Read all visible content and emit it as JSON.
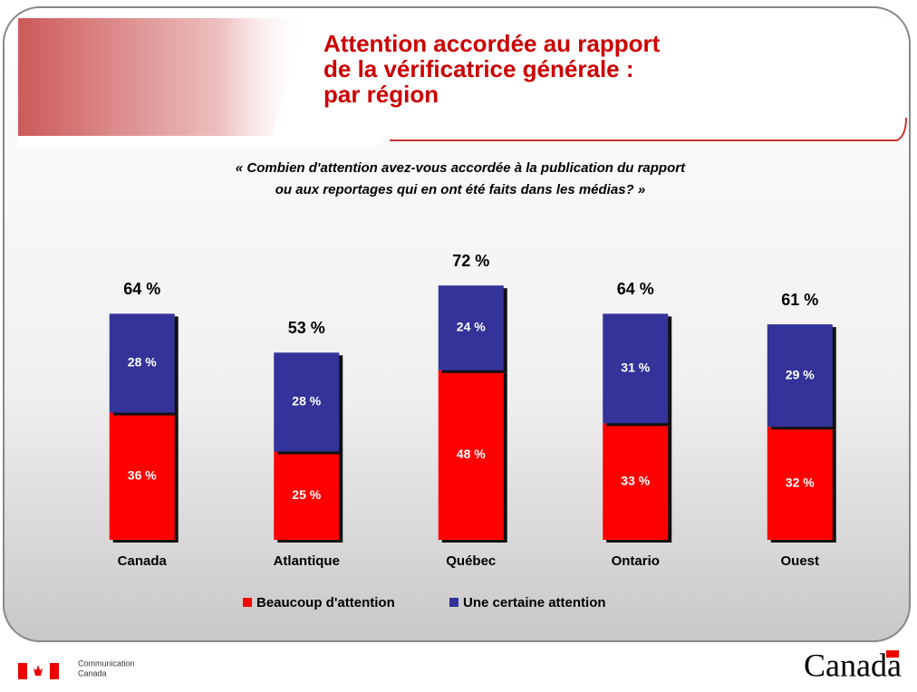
{
  "chart_data": {
    "type": "stacked_bar",
    "title": [
      "Attention accordée au rapport",
      "de la vérificatrice générale :",
      "par région"
    ],
    "subtitle": [
      "« Combien d'attention avez-vous accordée à la publication du rapport",
      "ou aux reportages qui en ont été faits dans les médias? »"
    ],
    "categories": [
      "Canada",
      "Atlantique",
      "Québec",
      "Ontario",
      "Ouest"
    ],
    "series": [
      {
        "name": "Beaucoup d'attention",
        "color": "#ff0000",
        "values": [
          36,
          25,
          48,
          33,
          32
        ],
        "value_labels": [
          "36 %",
          "25 %",
          "48 %",
          "33 %",
          "32 %"
        ]
      },
      {
        "name": "Une certaine attention",
        "color": "#333399",
        "values": [
          28,
          28,
          24,
          31,
          29
        ],
        "value_labels": [
          "28 %",
          "28 %",
          "24 %",
          "31 %",
          "29 %"
        ]
      }
    ],
    "totals": [
      64,
      53,
      72,
      64,
      61
    ],
    "total_labels": [
      "64 %",
      "53 %",
      "72 %",
      "64 %",
      "61 %"
    ],
    "legend": "bottom"
  },
  "footer": {
    "org": [
      "Communication",
      "Canada"
    ],
    "wordmark": "Canada"
  }
}
